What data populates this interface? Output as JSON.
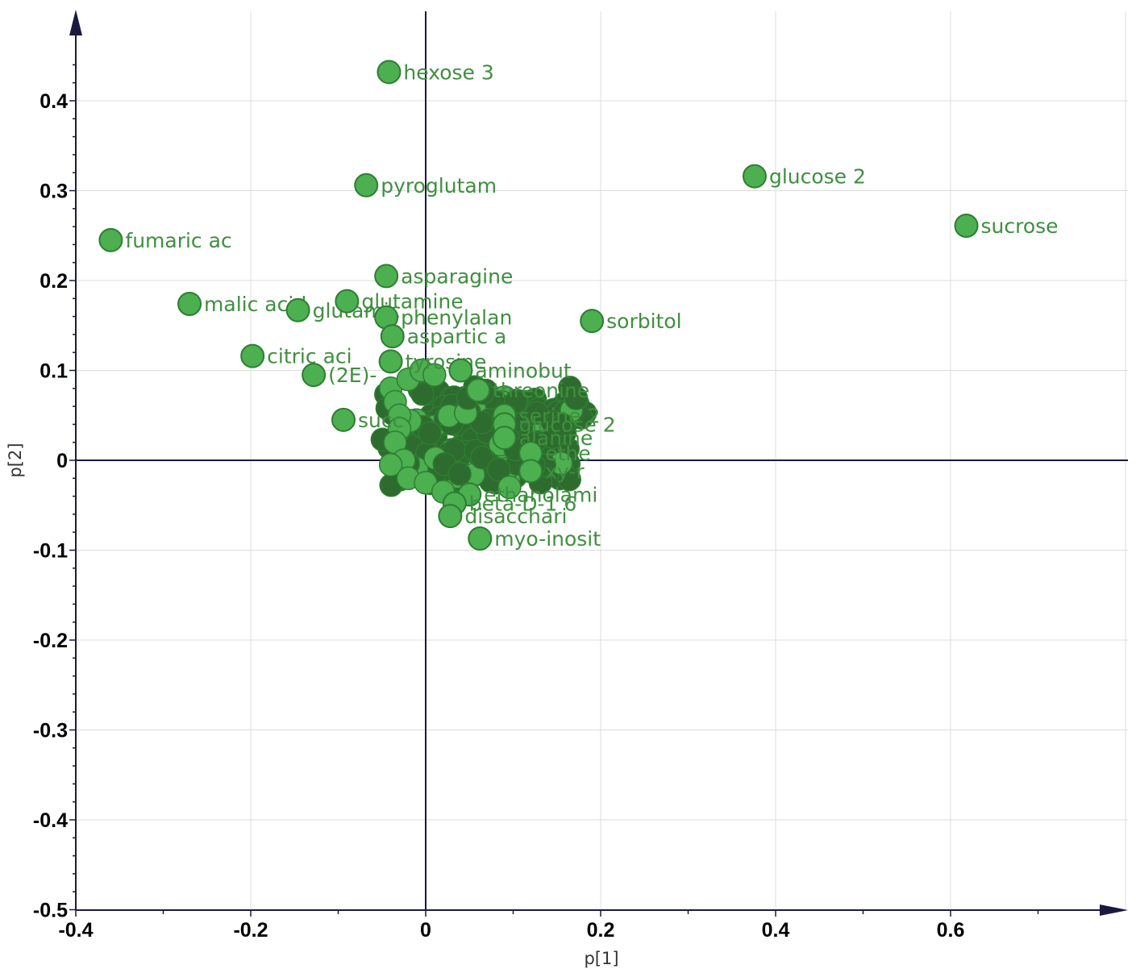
{
  "chart_data": {
    "type": "scatter",
    "xlabel": "p[1]",
    "ylabel": "p[2]",
    "xlim": [
      -0.4,
      0.8
    ],
    "ylim": [
      -0.5,
      0.5
    ],
    "x_ticks": [
      -0.4,
      -0.2,
      0,
      0.2,
      0.4,
      0.6
    ],
    "y_ticks": [
      0.4,
      0.3,
      0.2,
      0.1,
      0,
      -0.1,
      -0.2,
      -0.3,
      -0.4,
      -0.5
    ],
    "x_tick_labels": [
      "-0.4",
      "-0.2",
      "0",
      "0.2",
      "0.4",
      "0.6"
    ],
    "y_tick_labels": [
      "0.4",
      "0.3",
      "0.2",
      "0.1",
      "0",
      "-0.1",
      "-0.2",
      "-0.3",
      "-0.4",
      "-0.5"
    ],
    "grid": true,
    "colors": {
      "marker_fill": "#4caf50",
      "marker_stroke": "#2e7d32",
      "label": "#3f8f3f",
      "cluster": "#2e6b2e",
      "axes": "#1a1a40"
    },
    "labeled_points": [
      {
        "label": "hexose 3",
        "x": -0.042,
        "y": 0.432
      },
      {
        "label": "glucose 2",
        "x": 0.376,
        "y": 0.316
      },
      {
        "label": "sucrose",
        "x": 0.618,
        "y": 0.261
      },
      {
        "label": "pyroglutam",
        "x": -0.068,
        "y": 0.306
      },
      {
        "label": "fumaric ac",
        "x": -0.36,
        "y": 0.245
      },
      {
        "label": "asparagine",
        "x": -0.045,
        "y": 0.205
      },
      {
        "label": "malic acid",
        "x": -0.27,
        "y": 0.174
      },
      {
        "label": "glutamic",
        "x": -0.146,
        "y": 0.167
      },
      {
        "label": "glutamine",
        "x": -0.09,
        "y": 0.177
      },
      {
        "label": "phenylalan",
        "x": -0.045,
        "y": 0.159
      },
      {
        "label": "sorbitol",
        "x": 0.19,
        "y": 0.155
      },
      {
        "label": "aspartic a",
        "x": -0.038,
        "y": 0.138
      },
      {
        "label": "citric aci",
        "x": -0.198,
        "y": 0.116
      },
      {
        "label": "(2E)-",
        "x": -0.128,
        "y": 0.095
      },
      {
        "label": "tyrosine",
        "x": -0.04,
        "y": 0.11
      },
      {
        "label": "aminobut",
        "x": 0.04,
        "y": 0.1
      },
      {
        "label": "threonine",
        "x": 0.06,
        "y": 0.078
      },
      {
        "label": "serine 2",
        "x": 0.09,
        "y": 0.05
      },
      {
        "label": "glucose 2",
        "x": 0.09,
        "y": 0.04
      },
      {
        "label": "alanine",
        "x": 0.09,
        "y": 0.025
      },
      {
        "label": "ethe",
        "x": 0.12,
        "y": 0.008
      },
      {
        "label": "xy-r",
        "x": 0.12,
        "y": -0.012
      },
      {
        "label": "succ",
        "x": -0.094,
        "y": 0.045
      },
      {
        "label": "ethanolami",
        "x": 0.05,
        "y": -0.038
      },
      {
        "label": "beta-D-1 6",
        "x": 0.033,
        "y": -0.048
      },
      {
        "label": "disacchari",
        "x": 0.028,
        "y": -0.062
      },
      {
        "label": "myo-inosit",
        "x": 0.062,
        "y": -0.087
      }
    ]
  }
}
